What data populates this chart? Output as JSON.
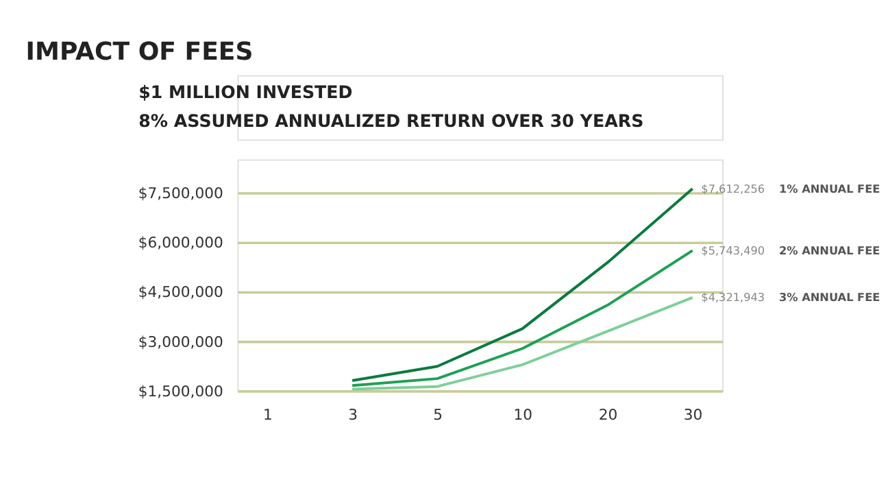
{
  "chart_data": {
    "type": "line",
    "title": "IMPACT OF FEES",
    "subtitle": [
      "$1 MILLION INVESTED",
      "8% ASSUMED ANNUALIZED RETURN OVER 30 YEARS"
    ],
    "categories": [
      "1",
      "3",
      "5",
      "10",
      "20",
      "30"
    ],
    "series": [
      {
        "name": "1% ANNUAL FEE",
        "color": "#0b7a3e",
        "values": [
          null,
          1810000,
          2240000,
          3380000,
          5380000,
          7612256
        ],
        "value_labels": [
          null,
          null,
          null,
          null,
          null,
          "$7,612,256"
        ]
      },
      {
        "name": "2% ANNUAL FEE",
        "color": "#1fa055",
        "values": [
          null,
          1660000,
          1870000,
          2780000,
          4090000,
          5743490
        ],
        "value_labels": [
          null,
          null,
          null,
          null,
          null,
          "$5,743,490"
        ]
      },
      {
        "name": "3% ANNUAL FEE",
        "color": "#7fcf9a",
        "values": [
          null,
          1550000,
          1630000,
          2290000,
          3300000,
          4321943
        ],
        "value_labels": [
          null,
          null,
          null,
          null,
          null,
          "$4,321,943"
        ]
      }
    ],
    "ylim": [
      1500000,
      8500000
    ],
    "yticks": [
      {
        "value": 1500000,
        "label": "$1,500,000"
      },
      {
        "value": 3000000,
        "label": "$3,000,000"
      },
      {
        "value": 4500000,
        "label": "$4,500,000"
      },
      {
        "value": 6000000,
        "label": "$6,000,000"
      },
      {
        "value": 7500000,
        "label": "$7,500,000"
      }
    ],
    "grid": "y",
    "legend": false
  }
}
